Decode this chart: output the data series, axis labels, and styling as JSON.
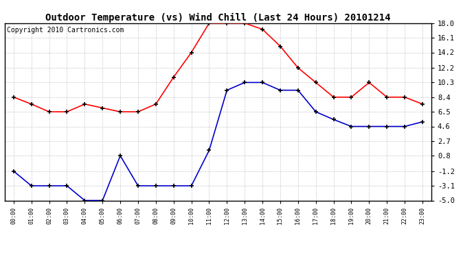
{
  "title": "Outdoor Temperature (vs) Wind Chill (Last 24 Hours) 20101214",
  "copyright": "Copyright 2010 Cartronics.com",
  "hours": [
    "00:00",
    "01:00",
    "02:00",
    "03:00",
    "04:00",
    "05:00",
    "06:00",
    "07:00",
    "08:00",
    "09:00",
    "10:00",
    "11:00",
    "12:00",
    "13:00",
    "14:00",
    "15:00",
    "16:00",
    "17:00",
    "18:00",
    "19:00",
    "20:00",
    "21:00",
    "22:00",
    "23:00"
  ],
  "red_data": [
    8.4,
    7.5,
    6.5,
    6.5,
    7.5,
    7.0,
    6.5,
    6.5,
    7.5,
    11.0,
    14.2,
    18.0,
    18.0,
    18.0,
    17.2,
    15.0,
    12.2,
    10.3,
    8.4,
    8.4,
    10.3,
    8.4,
    8.4,
    7.5
  ],
  "blue_data": [
    -1.2,
    -3.1,
    -3.1,
    -3.1,
    -5.0,
    -5.0,
    0.8,
    -3.1,
    -3.1,
    -3.1,
    -3.1,
    1.5,
    9.3,
    10.3,
    10.3,
    9.3,
    9.3,
    6.5,
    5.5,
    4.6,
    4.6,
    4.6,
    4.6,
    5.2
  ],
  "ylim": [
    -5.0,
    18.0
  ],
  "yticks": [
    18.0,
    16.1,
    14.2,
    12.2,
    10.3,
    8.4,
    6.5,
    4.6,
    2.7,
    0.8,
    -1.2,
    -3.1,
    -5.0
  ],
  "red_color": "#ff0000",
  "blue_color": "#0000cc",
  "background_color": "#ffffff",
  "grid_color": "#bbbbbb",
  "title_fontsize": 10,
  "copyright_fontsize": 7
}
